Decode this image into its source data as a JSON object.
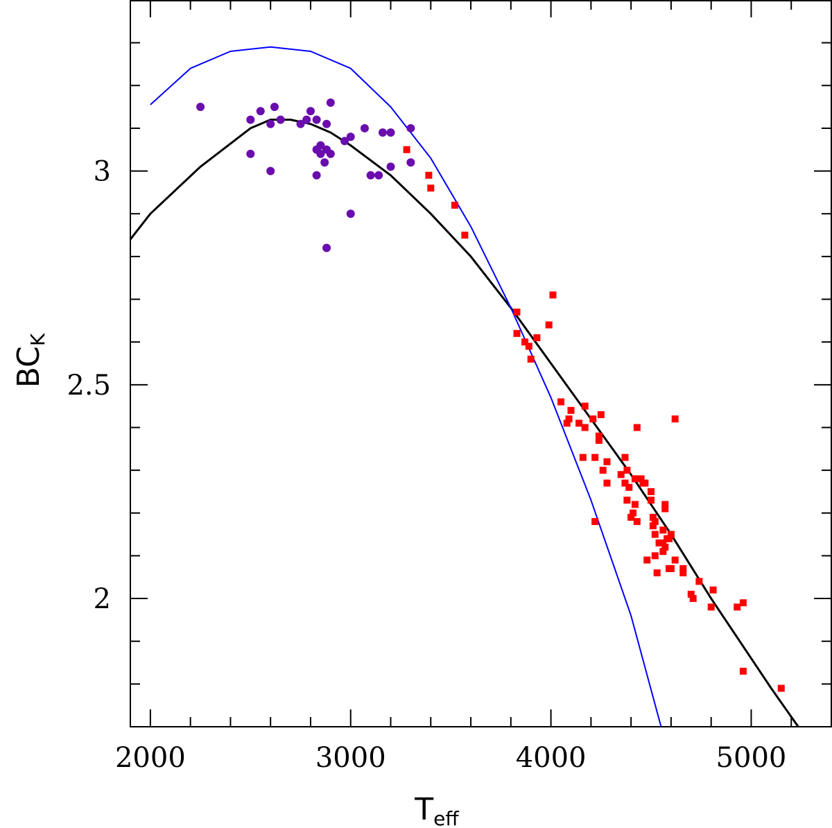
{
  "chart_data": {
    "type": "scatter",
    "title": "",
    "xlabel": "T",
    "xlabel_sub": "eff",
    "ylabel": "BC",
    "ylabel_sub": "K",
    "xlim": [
      1900,
      5400
    ],
    "ylim": [
      1.7,
      3.4
    ],
    "x_ticks": [
      2000,
      3000,
      4000,
      5000
    ],
    "x_tick_labels": [
      "2000",
      "3000",
      "4000",
      "5000"
    ],
    "y_ticks": [
      2.0,
      2.5,
      3.0
    ],
    "y_tick_labels": [
      "2",
      "2.5",
      "3"
    ],
    "x_minor_step": 200,
    "y_minor_step": 0.1,
    "grid": false,
    "colors": {
      "circles": "#6a0dad",
      "squares": "#ff0000",
      "fit_black": "#000000",
      "model_blue": "#0000ff"
    },
    "series": [
      {
        "name": "circles",
        "kind": "scatter",
        "marker": "circle",
        "color": "#6a0dad",
        "points": [
          [
            2250,
            3.15
          ],
          [
            2500,
            3.12
          ],
          [
            2500,
            3.04
          ],
          [
            2550,
            3.14
          ],
          [
            2600,
            3.11
          ],
          [
            2600,
            3.0
          ],
          [
            2620,
            3.15
          ],
          [
            2650,
            3.12
          ],
          [
            2750,
            3.11
          ],
          [
            2780,
            3.12
          ],
          [
            2800,
            3.14
          ],
          [
            2830,
            3.12
          ],
          [
            2830,
            3.05
          ],
          [
            2850,
            3.06
          ],
          [
            2850,
            3.04
          ],
          [
            2880,
            3.05
          ],
          [
            2870,
            3.02
          ],
          [
            2830,
            2.99
          ],
          [
            2880,
            3.11
          ],
          [
            2900,
            3.04
          ],
          [
            2900,
            3.16
          ],
          [
            2970,
            3.07
          ],
          [
            3000,
            3.08
          ],
          [
            3000,
            2.9
          ],
          [
            2880,
            2.82
          ],
          [
            3070,
            3.1
          ],
          [
            3100,
            2.99
          ],
          [
            3140,
            2.99
          ],
          [
            3160,
            3.09
          ],
          [
            3200,
            3.09
          ],
          [
            3200,
            3.01
          ],
          [
            3300,
            3.1
          ],
          [
            3300,
            3.02
          ]
        ]
      },
      {
        "name": "squares",
        "kind": "scatter",
        "marker": "square",
        "color": "#ff0000",
        "points": [
          [
            3280,
            3.05
          ],
          [
            3390,
            2.99
          ],
          [
            3400,
            2.96
          ],
          [
            3520,
            2.92
          ],
          [
            3570,
            2.85
          ],
          [
            3830,
            2.67
          ],
          [
            3830,
            2.62
          ],
          [
            3870,
            2.6
          ],
          [
            3890,
            2.59
          ],
          [
            3900,
            2.56
          ],
          [
            3930,
            2.61
          ],
          [
            3990,
            2.64
          ],
          [
            4010,
            2.71
          ],
          [
            4050,
            2.46
          ],
          [
            4080,
            2.41
          ],
          [
            4090,
            2.42
          ],
          [
            4100,
            2.44
          ],
          [
            4140,
            2.41
          ],
          [
            4160,
            2.33
          ],
          [
            4170,
            2.4
          ],
          [
            4170,
            2.45
          ],
          [
            4210,
            2.42
          ],
          [
            4220,
            2.33
          ],
          [
            4220,
            2.18
          ],
          [
            4240,
            2.38
          ],
          [
            4240,
            2.37
          ],
          [
            4250,
            2.43
          ],
          [
            4260,
            2.3
          ],
          [
            4280,
            2.27
          ],
          [
            4280,
            2.32
          ],
          [
            4350,
            2.29
          ],
          [
            4370,
            2.33
          ],
          [
            4370,
            2.27
          ],
          [
            4380,
            2.3
          ],
          [
            4380,
            2.23
          ],
          [
            4390,
            2.26
          ],
          [
            4400,
            2.19
          ],
          [
            4410,
            2.2
          ],
          [
            4420,
            2.28
          ],
          [
            4420,
            2.22
          ],
          [
            4430,
            2.18
          ],
          [
            4430,
            2.4
          ],
          [
            4450,
            2.28
          ],
          [
            4460,
            2.27
          ],
          [
            4470,
            2.27
          ],
          [
            4480,
            2.09
          ],
          [
            4500,
            2.25
          ],
          [
            4500,
            2.23
          ],
          [
            4510,
            2.19
          ],
          [
            4510,
            2.17
          ],
          [
            4520,
            2.18
          ],
          [
            4520,
            2.15
          ],
          [
            4520,
            2.1
          ],
          [
            4530,
            2.06
          ],
          [
            4540,
            2.13
          ],
          [
            4560,
            2.16
          ],
          [
            4560,
            2.13
          ],
          [
            4560,
            2.11
          ],
          [
            4570,
            2.22
          ],
          [
            4570,
            2.21
          ],
          [
            4570,
            2.12
          ],
          [
            4580,
            2.14
          ],
          [
            4590,
            2.14
          ],
          [
            4590,
            2.07
          ],
          [
            4600,
            2.15
          ],
          [
            4600,
            2.07
          ],
          [
            4620,
            2.09
          ],
          [
            4620,
            2.42
          ],
          [
            4660,
            2.07
          ],
          [
            4660,
            2.06
          ],
          [
            4700,
            2.01
          ],
          [
            4710,
            2.0
          ],
          [
            4740,
            2.04
          ],
          [
            4800,
            1.98
          ],
          [
            4810,
            2.02
          ],
          [
            4930,
            1.98
          ],
          [
            4960,
            1.99
          ],
          [
            4960,
            1.83
          ],
          [
            5150,
            1.79
          ]
        ]
      },
      {
        "name": "fit_black",
        "kind": "line",
        "color": "#000000",
        "points": [
          [
            1900,
            2.84
          ],
          [
            2000,
            2.9
          ],
          [
            2250,
            3.01
          ],
          [
            2500,
            3.1
          ],
          [
            2600,
            3.12
          ],
          [
            2700,
            3.12
          ],
          [
            2800,
            3.11
          ],
          [
            2900,
            3.09
          ],
          [
            3000,
            3.06
          ],
          [
            3200,
            2.99
          ],
          [
            3400,
            2.9
          ],
          [
            3600,
            2.8
          ],
          [
            3800,
            2.68
          ],
          [
            4000,
            2.55
          ],
          [
            4200,
            2.42
          ],
          [
            4400,
            2.29
          ],
          [
            4600,
            2.15
          ],
          [
            4800,
            2.0
          ],
          [
            5000,
            1.86
          ],
          [
            5100,
            1.79
          ],
          [
            5250,
            1.69
          ]
        ]
      },
      {
        "name": "model_blue",
        "kind": "line",
        "color": "#0000ff",
        "points": [
          [
            2000,
            3.155
          ],
          [
            2200,
            3.24
          ],
          [
            2400,
            3.28
          ],
          [
            2600,
            3.29
          ],
          [
            2800,
            3.28
          ],
          [
            3000,
            3.24
          ],
          [
            3200,
            3.15
          ],
          [
            3400,
            3.03
          ],
          [
            3600,
            2.87
          ],
          [
            3800,
            2.68
          ],
          [
            4000,
            2.47
          ],
          [
            4200,
            2.23
          ],
          [
            4400,
            1.96
          ],
          [
            4550,
            1.7
          ]
        ]
      }
    ]
  }
}
